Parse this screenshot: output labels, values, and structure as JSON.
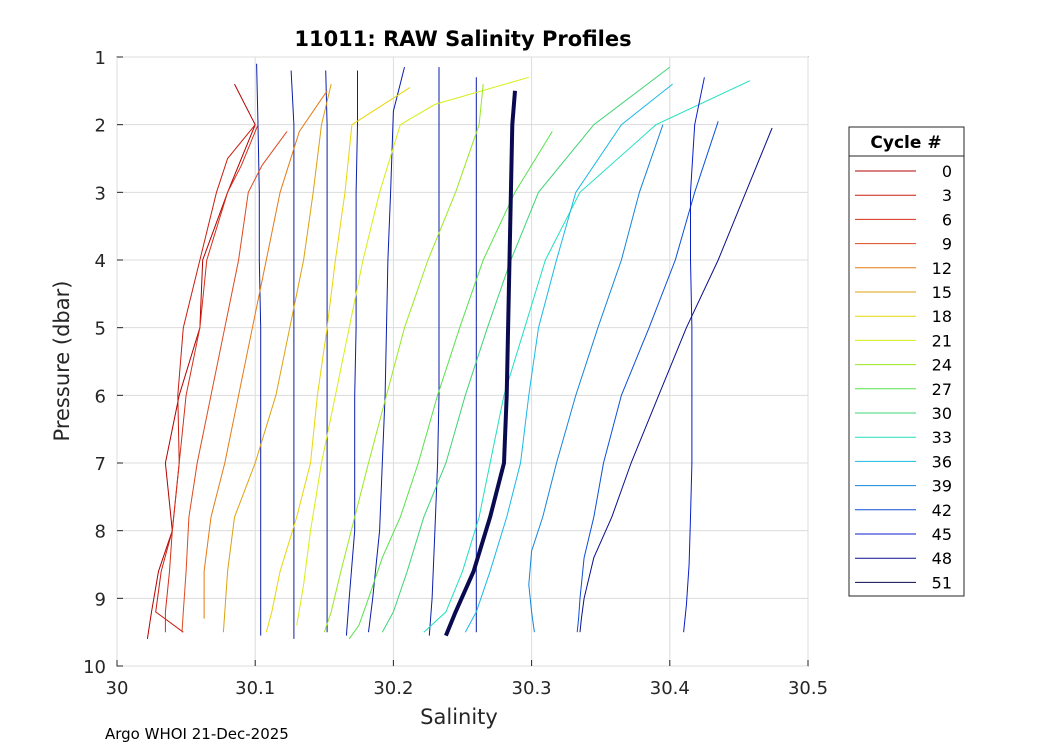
{
  "chart_data": {
    "type": "line",
    "title": "11011: RAW Salinity Profiles",
    "xlabel": "Salinity",
    "ylabel": "Pressure (dbar)",
    "xlim": [
      30,
      30.5
    ],
    "ylim": [
      1,
      10
    ],
    "y_reversed": true,
    "grid": true,
    "xticks": [
      "30",
      "30.1",
      "30.2",
      "30.3",
      "30.4",
      "30.5"
    ],
    "yticks": [
      "1",
      "2",
      "3",
      "4",
      "5",
      "6",
      "7",
      "8",
      "9",
      "10"
    ],
    "legend": {
      "title": "Cycle #",
      "position": "right",
      "entries": [
        "0",
        "3",
        "6",
        "9",
        "12",
        "15",
        "18",
        "21",
        "24",
        "27",
        "30",
        "33",
        "36",
        "39",
        "42",
        "45",
        "48",
        "51"
      ]
    },
    "highlighted_series": "51",
    "series": [
      {
        "name": "0",
        "color": "#b30000",
        "salinity": [
          30.085,
          30.1,
          30.08,
          30.062,
          30.06,
          30.045,
          30.035,
          30.04,
          30.03,
          30.025,
          30.022
        ],
        "pressure": [
          1.4,
          2.0,
          3.0,
          4.0,
          5.0,
          6.0,
          7.0,
          8.0,
          8.6,
          9.2,
          9.6
        ]
      },
      {
        "name": "3",
        "color": "#c81e0f",
        "salinity": [
          30.1,
          30.08,
          30.072,
          30.06,
          30.048,
          30.044,
          30.045,
          30.04,
          30.032,
          30.028,
          30.048
        ],
        "pressure": [
          2.0,
          2.5,
          3.0,
          4.0,
          5.0,
          6.0,
          7.0,
          8.0,
          8.6,
          9.2,
          9.5
        ]
      },
      {
        "name": "6",
        "color": "#d4301a",
        "salinity": [
          30.102,
          30.09,
          30.08,
          30.065,
          30.06,
          30.05,
          30.045,
          30.04,
          30.038,
          30.035,
          30.035
        ],
        "pressure": [
          2.0,
          2.6,
          3.0,
          4.0,
          5.0,
          6.0,
          7.0,
          8.0,
          8.6,
          9.2,
          9.5
        ]
      },
      {
        "name": "9",
        "color": "#dd4a1f",
        "salinity": [
          30.123,
          30.105,
          30.095,
          30.088,
          30.078,
          30.068,
          30.058,
          30.052,
          30.05,
          30.048,
          30.047
        ],
        "pressure": [
          2.1,
          2.6,
          3.0,
          4.0,
          5.0,
          6.0,
          7.0,
          7.8,
          8.6,
          9.2,
          9.5
        ]
      },
      {
        "name": "12",
        "color": "#e57a14",
        "salinity": [
          30.152,
          30.132,
          30.118,
          30.108,
          30.098,
          30.088,
          30.078,
          30.068,
          30.063,
          30.063,
          30.063
        ],
        "pressure": [
          1.5,
          2.1,
          3.0,
          4.0,
          5.0,
          6.0,
          7.0,
          7.8,
          8.6,
          9.2,
          9.3
        ]
      },
      {
        "name": "15",
        "color": "#dda10e",
        "salinity": [
          30.155,
          30.148,
          30.142,
          30.135,
          30.125,
          30.115,
          30.1,
          30.085,
          30.08,
          30.078,
          30.077
        ],
        "pressure": [
          1.4,
          2.0,
          3.0,
          4.0,
          5.0,
          6.0,
          7.0,
          7.8,
          8.6,
          9.2,
          9.5
        ]
      },
      {
        "name": "18",
        "color": "#e8d60a",
        "salinity": [
          30.212,
          30.17,
          30.165,
          30.158,
          30.152,
          30.145,
          30.14,
          30.13,
          30.118,
          30.112,
          30.108
        ],
        "pressure": [
          1.45,
          2.0,
          3.0,
          4.0,
          5.0,
          6.0,
          7.0,
          7.8,
          8.6,
          9.2,
          9.5
        ]
      },
      {
        "name": "21",
        "color": "#d6ee15",
        "salinity": [
          30.298,
          30.23,
          30.205,
          30.19,
          30.178,
          30.168,
          30.158,
          30.148,
          30.14,
          30.135,
          30.13
        ],
        "pressure": [
          1.3,
          1.7,
          2.0,
          3.0,
          4.0,
          5.0,
          6.0,
          7.0,
          8.0,
          8.8,
          9.4
        ]
      },
      {
        "name": "24",
        "color": "#9ae821",
        "salinity": [
          30.265,
          30.262,
          30.245,
          30.225,
          30.208,
          30.195,
          30.182,
          30.172,
          30.162,
          30.155,
          30.15
        ],
        "pressure": [
          1.4,
          2.0,
          3.0,
          4.0,
          5.0,
          6.0,
          7.0,
          7.8,
          8.6,
          9.2,
          9.5
        ]
      },
      {
        "name": "27",
        "color": "#57e24a",
        "salinity": [
          30.315,
          30.288,
          30.265,
          30.248,
          30.232,
          30.218,
          30.205,
          30.192,
          30.182,
          30.175,
          30.168
        ],
        "pressure": [
          2.1,
          3.0,
          4.0,
          5.0,
          6.0,
          7.0,
          7.8,
          8.4,
          9.0,
          9.4,
          9.6
        ]
      },
      {
        "name": "30",
        "color": "#3fd474",
        "salinity": [
          30.4,
          30.345,
          30.305,
          30.285,
          30.268,
          30.252,
          30.238,
          30.222,
          30.21,
          30.2,
          30.192
        ],
        "pressure": [
          1.15,
          2.0,
          3.0,
          4.0,
          5.0,
          6.0,
          7.0,
          7.8,
          8.6,
          9.2,
          9.5
        ]
      },
      {
        "name": "33",
        "color": "#20e0c0",
        "salinity": [
          30.458,
          30.39,
          30.335,
          30.31,
          30.295,
          30.28,
          30.27,
          30.262,
          30.25,
          30.238,
          30.222
        ],
        "pressure": [
          1.35,
          2.0,
          3.0,
          4.0,
          5.0,
          6.0,
          7.0,
          7.8,
          8.6,
          9.2,
          9.5
        ]
      },
      {
        "name": "36",
        "color": "#1ab8e6",
        "salinity": [
          30.402,
          30.365,
          30.332,
          30.318,
          30.305,
          30.298,
          30.292,
          30.282,
          30.27,
          30.26,
          30.252
        ],
        "pressure": [
          1.4,
          2.0,
          3.0,
          4.0,
          5.0,
          6.0,
          7.0,
          7.8,
          8.6,
          9.2,
          9.5
        ]
      },
      {
        "name": "39",
        "color": "#1584d8",
        "salinity": [
          30.395,
          30.378,
          30.365,
          30.348,
          30.332,
          30.318,
          30.308,
          30.3,
          30.298,
          30.3,
          30.302
        ],
        "pressure": [
          2.0,
          3.0,
          4.0,
          5.0,
          6.0,
          7.0,
          7.8,
          8.3,
          8.8,
          9.2,
          9.5
        ]
      },
      {
        "name": "42",
        "color": "#0c4fd6",
        "salinity": [
          30.435,
          30.418,
          30.404,
          30.385,
          30.365,
          30.352,
          30.345,
          30.338,
          30.335,
          30.334,
          30.333
        ],
        "pressure": [
          1.95,
          3.0,
          4.0,
          5.0,
          6.0,
          7.0,
          7.8,
          8.4,
          9.0,
          9.3,
          9.5
        ]
      },
      {
        "name": "45",
        "color": "#0a1ec8",
        "salinity": [
          30.425,
          30.418,
          30.415,
          30.415,
          30.416,
          30.416,
          30.416,
          30.415,
          30.414,
          30.412,
          30.41
        ],
        "pressure": [
          1.3,
          2.0,
          3.0,
          4.0,
          5.0,
          6.0,
          7.0,
          7.8,
          8.5,
          9.1,
          9.5
        ]
      },
      {
        "name": "48",
        "color": "#0a0f8a",
        "salinity": [
          30.474,
          30.455,
          30.435,
          30.412,
          30.392,
          30.372,
          30.358,
          30.345,
          30.338,
          30.336,
          30.335
        ],
        "pressure": [
          2.05,
          3.0,
          4.0,
          5.0,
          6.0,
          7.0,
          7.8,
          8.4,
          9.0,
          9.3,
          9.5
        ]
      },
      {
        "name": "51",
        "color": "#0a0a50",
        "salinity": [
          30.288,
          30.286,
          30.285,
          30.284,
          30.283,
          30.282,
          30.28,
          30.27,
          30.258,
          30.245,
          30.238
        ],
        "pressure": [
          1.5,
          2.0,
          3.0,
          4.0,
          5.0,
          6.0,
          7.0,
          7.8,
          8.6,
          9.2,
          9.55
        ]
      }
    ],
    "vertical_profiles": [
      {
        "name": "v1",
        "color": "#0a1eaa",
        "salinity": [
          30.101,
          30.102,
          30.103,
          30.103,
          30.104,
          30.104,
          30.104,
          30.104,
          30.104,
          30.104
        ],
        "pressure": [
          1.1,
          2.0,
          3.0,
          4.0,
          5.0,
          6.0,
          7.0,
          8.0,
          9.0,
          9.55
        ]
      },
      {
        "name": "v2",
        "color": "#0a1eaa",
        "salinity": [
          30.126,
          30.128,
          30.128,
          30.128,
          30.128,
          30.128,
          30.128,
          30.128,
          30.128,
          30.128
        ],
        "pressure": [
          1.2,
          2.0,
          3.0,
          4.0,
          5.0,
          6.0,
          7.0,
          8.0,
          9.0,
          9.6
        ]
      },
      {
        "name": "v3",
        "color": "#0a1eaa",
        "salinity": [
          30.151,
          30.152,
          30.152,
          30.152,
          30.152,
          30.152,
          30.152,
          30.152,
          30.152,
          30.152
        ],
        "pressure": [
          1.2,
          2.0,
          3.0,
          4.0,
          5.0,
          6.0,
          7.0,
          8.0,
          9.0,
          9.5
        ]
      },
      {
        "name": "v4",
        "color": "#0a1eaa",
        "salinity": [
          30.174,
          30.174,
          30.173,
          30.173,
          30.173,
          30.172,
          30.172,
          30.172,
          30.168,
          30.166
        ],
        "pressure": [
          1.2,
          2.0,
          3.0,
          4.0,
          5.0,
          6.0,
          7.0,
          8.0,
          9.0,
          9.55
        ]
      },
      {
        "name": "v5",
        "color": "#0a1eaa",
        "salinity": [
          30.208,
          30.2,
          30.198,
          30.196,
          30.195,
          30.194,
          30.192,
          30.19,
          30.185,
          30.182
        ],
        "pressure": [
          1.15,
          1.8,
          3.0,
          4.0,
          5.0,
          6.0,
          7.0,
          8.0,
          9.0,
          9.5
        ]
      },
      {
        "name": "v6",
        "color": "#0a1eaa",
        "salinity": [
          30.233,
          30.233,
          30.233,
          30.233,
          30.233,
          30.233,
          30.232,
          30.23,
          30.228,
          30.226
        ],
        "pressure": [
          1.15,
          2.0,
          3.0,
          4.0,
          5.0,
          6.0,
          7.0,
          8.0,
          9.0,
          9.55
        ]
      },
      {
        "name": "v7",
        "color": "#0a1eaa",
        "salinity": [
          30.26,
          30.26,
          30.26,
          30.26,
          30.26,
          30.26,
          30.26,
          30.26,
          30.26,
          30.26
        ],
        "pressure": [
          1.3,
          2.0,
          3.0,
          4.0,
          5.0,
          6.0,
          7.0,
          8.0,
          9.0,
          9.5
        ]
      }
    ]
  },
  "footer": "Argo WHOI 21-Dec-2025"
}
